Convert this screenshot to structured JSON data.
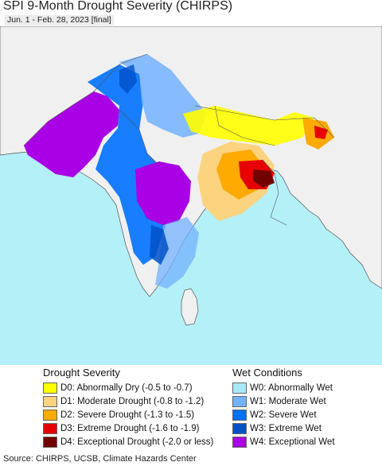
{
  "title": "SPI 9-Month Drought Severity (CHIRPS)",
  "subtitle": "Jun. 1 - Feb. 28, 2023 [final]",
  "map": {
    "water_color": "#b4f0f8",
    "land_color": "#f0f0f0",
    "border_color": "#555555"
  },
  "legend": {
    "drought": {
      "title": "Drought Severity",
      "items": [
        {
          "code": "D0",
          "label": "D0: Abnormally Dry (-0.5 to -0.7)",
          "color": "#ffff00"
        },
        {
          "code": "D1",
          "label": "D1: Moderate Drought (-0.8 to -1.2)",
          "color": "#fcd37f"
        },
        {
          "code": "D2",
          "label": "D2: Severe Drought (-1.3 to -1.5)",
          "color": "#ffaa00"
        },
        {
          "code": "D3",
          "label": "D3: Extreme Drought (-1.6 to -1.9)",
          "color": "#e60000"
        },
        {
          "code": "D4",
          "label": "D4: Exceptional Drought (-2.0 or less)",
          "color": "#730000"
        }
      ]
    },
    "wet": {
      "title": "Wet Conditions",
      "items": [
        {
          "code": "W0",
          "label": "W0: Abnormally Wet",
          "color": "#aae8f8"
        },
        {
          "code": "W1",
          "label": "W1: Moderate Wet",
          "color": "#73b2ff"
        },
        {
          "code": "W2",
          "label": "W2: Severe Wet",
          "color": "#0070ff"
        },
        {
          "code": "W3",
          "label": "W3: Extreme Wet",
          "color": "#0050c8"
        },
        {
          "code": "W4",
          "label": "W4: Exceptional Wet",
          "color": "#aa00e6"
        }
      ]
    }
  },
  "footer": "Source: CHIRPS, UCSB, Climate Hazards Center"
}
